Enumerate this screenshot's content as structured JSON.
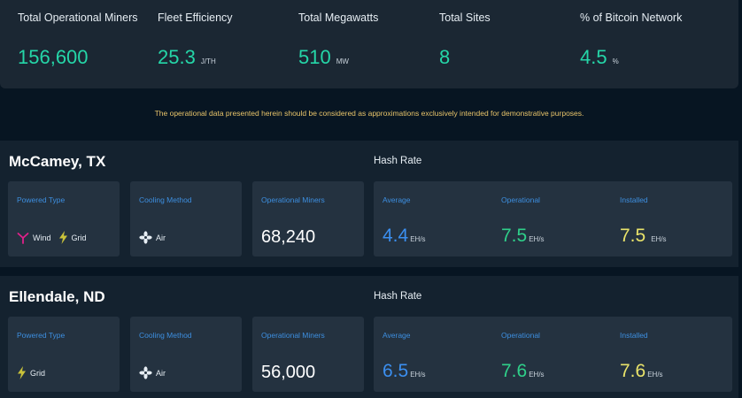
{
  "stats": [
    {
      "label": "Total Operational Miners",
      "value": "156,600",
      "unit": ""
    },
    {
      "label": "Fleet Efficiency",
      "value": "25.3",
      "unit": "J/TH"
    },
    {
      "label": "Total Megawatts",
      "value": "510",
      "unit": "MW"
    },
    {
      "label": "Total Sites",
      "value": "8",
      "unit": ""
    },
    {
      "label": "% of Bitcoin Network",
      "value": "4.5",
      "unit": "%"
    }
  ],
  "disclaimer": "The operational data presented herein should be considered as approximations exclusively intended for demonstrative purposes.",
  "colors": {
    "accent_teal": "#25d6a8",
    "hash_average": "#3b8ff0",
    "hash_operational": "#2fd08a",
    "hash_installed": "#e9e36a",
    "card_label": "#3d8fe0",
    "disclaimer": "#e8c46a"
  },
  "labels": {
    "hash_rate": "Hash Rate",
    "powered_type": "Powered Type",
    "cooling_method": "Cooling Method",
    "operational_miners": "Operational Miners",
    "average": "Average",
    "operational": "Operational",
    "installed": "Installed",
    "hash_unit": "EH/s"
  },
  "sites": [
    {
      "name": "McCamey, TX",
      "power": [
        {
          "icon": "wind-turbine-icon",
          "label": "Wind"
        },
        {
          "icon": "lightning-bolt-icon",
          "label": "Grid"
        }
      ],
      "cooling": {
        "icon": "fan-icon",
        "label": "Air"
      },
      "operational_miners": "68,240",
      "hash_average": "4.4",
      "hash_operational": "7.5",
      "hash_installed": "7.5"
    },
    {
      "name": "Ellendale, ND",
      "power": [
        {
          "icon": "lightning-bolt-icon",
          "label": "Grid"
        }
      ],
      "cooling": {
        "icon": "fan-icon",
        "label": "Air"
      },
      "operational_miners": "56,000",
      "hash_average": "6.5",
      "hash_operational": "7.6",
      "hash_installed": "7.6"
    }
  ]
}
